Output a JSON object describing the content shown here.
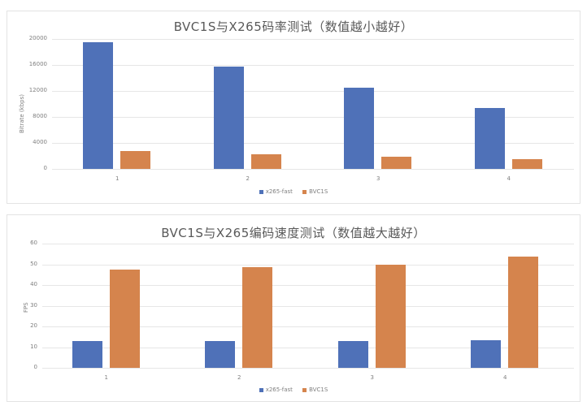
{
  "chart_data": [
    {
      "type": "bar",
      "title": "BVC1S与X265码率测试（数值越小越好）",
      "xlabel": "",
      "ylabel": "Bitrate (kbps)",
      "categories": [
        "1",
        "2",
        "3",
        "4"
      ],
      "series": [
        {
          "name": "x265-fast",
          "color": "#4f71b8",
          "values": [
            19500,
            15700,
            12500,
            9400
          ]
        },
        {
          "name": "BVC1S",
          "color": "#d5844d",
          "values": [
            2700,
            2200,
            1850,
            1450
          ]
        }
      ],
      "yticks": [
        "0",
        "4000",
        "8000",
        "12000",
        "16000",
        "20000"
      ],
      "ylim": [
        0,
        20000
      ],
      "grid": true,
      "legend_position": "bottom"
    },
    {
      "type": "bar",
      "title": "BVC1S与X265编码速度测试（数值越大越好）",
      "xlabel": "",
      "ylabel": "FPS",
      "categories": [
        "1",
        "2",
        "3",
        "4"
      ],
      "series": [
        {
          "name": "x265-fast",
          "color": "#4f71b8",
          "values": [
            12.8,
            12.8,
            12.8,
            13.4
          ]
        },
        {
          "name": "BVC1S",
          "color": "#d5844d",
          "values": [
            47.3,
            48.6,
            49.8,
            53.6
          ]
        }
      ],
      "yticks": [
        "0",
        "10",
        "20",
        "30",
        "40",
        "50",
        "60"
      ],
      "ylim": [
        0,
        60
      ],
      "grid": true,
      "legend_position": "bottom"
    }
  ]
}
